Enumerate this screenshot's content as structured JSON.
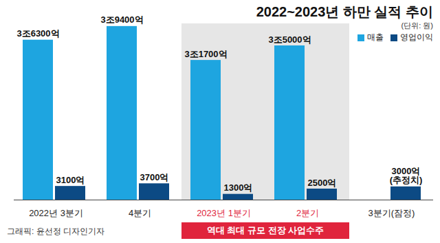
{
  "chart_data": {
    "type": "bar",
    "title": "2022~2023년 하만 실적 추이",
    "subtitle": "(단위: 원)",
    "categories": [
      "2022년 3분기",
      "4분기",
      "2023년 1분기",
      "2분기",
      "3분기(잠정)"
    ],
    "series": [
      {
        "name": "매출",
        "color": "#1ea5e0",
        "values": [
          36300,
          39400,
          31700,
          35000,
          null
        ],
        "value_labels": [
          "3조6300억",
          "3조9400억",
          "3조1700억",
          "3조5000억",
          null
        ]
      },
      {
        "name": "영업이익",
        "color": "#0c4a84",
        "values": [
          3100,
          3700,
          1300,
          2500,
          3000
        ],
        "value_labels": [
          "3100억",
          "3700억",
          "1300억",
          "2500억",
          "3000억"
        ]
      }
    ],
    "ylim": [
      0,
      40000
    ],
    "grid": false,
    "tick_labels": "x",
    "data_labels": true,
    "legend": "top-right",
    "annotations": [
      {
        "text": "(추정치)",
        "category": "3분기(잠정)",
        "series": "영업이익"
      },
      {
        "text": "역대 최대 규모 전장 사업수주",
        "categories": [
          "2023년 1분기",
          "2분기"
        ]
      }
    ],
    "caption": "그래픽: 윤선정 디자인기자"
  }
}
